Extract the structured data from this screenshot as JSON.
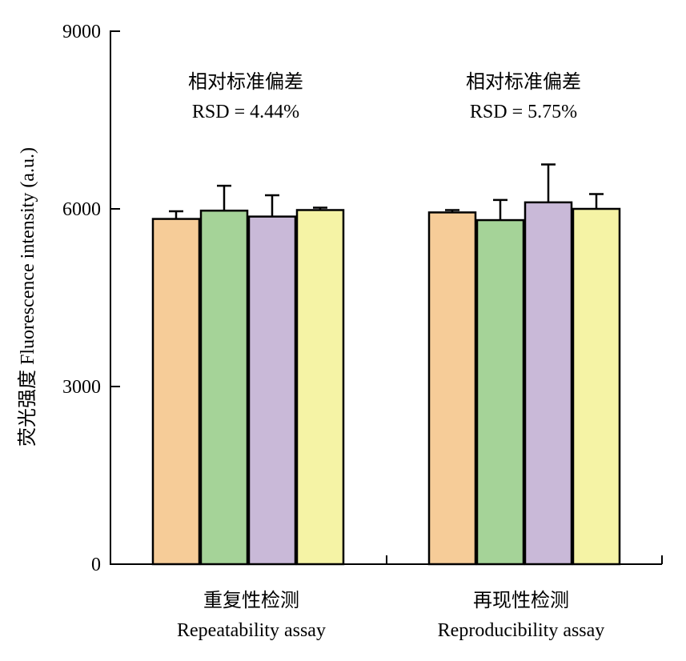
{
  "chart_data": {
    "type": "bar",
    "ylabel": "荧光强度 Fluorescence intensity (a.u.)",
    "ylim": [
      0,
      9000
    ],
    "yticks": [
      "0",
      "3000",
      "6000",
      "9000"
    ],
    "groups": [
      {
        "label_cn": "重复性检测",
        "label_en": "Repeatability assay",
        "annotation_cn": "相对标准偏差",
        "annotation_rsd": "RSD = 4.44%",
        "values": [
          5830,
          5970,
          5870,
          5980
        ],
        "errors": [
          130,
          420,
          360,
          40
        ]
      },
      {
        "label_cn": "再现性检测",
        "label_en": "Reproducibility assay",
        "annotation_cn": "相对标准偏差",
        "annotation_rsd": "RSD = 5.75%",
        "values": [
          5940,
          5810,
          6110,
          6000
        ],
        "errors": [
          40,
          340,
          640,
          250
        ]
      }
    ],
    "bar_colors": [
      "#F6CC98",
      "#A5D398",
      "#C9B9D8",
      "#F5F3A5"
    ]
  }
}
